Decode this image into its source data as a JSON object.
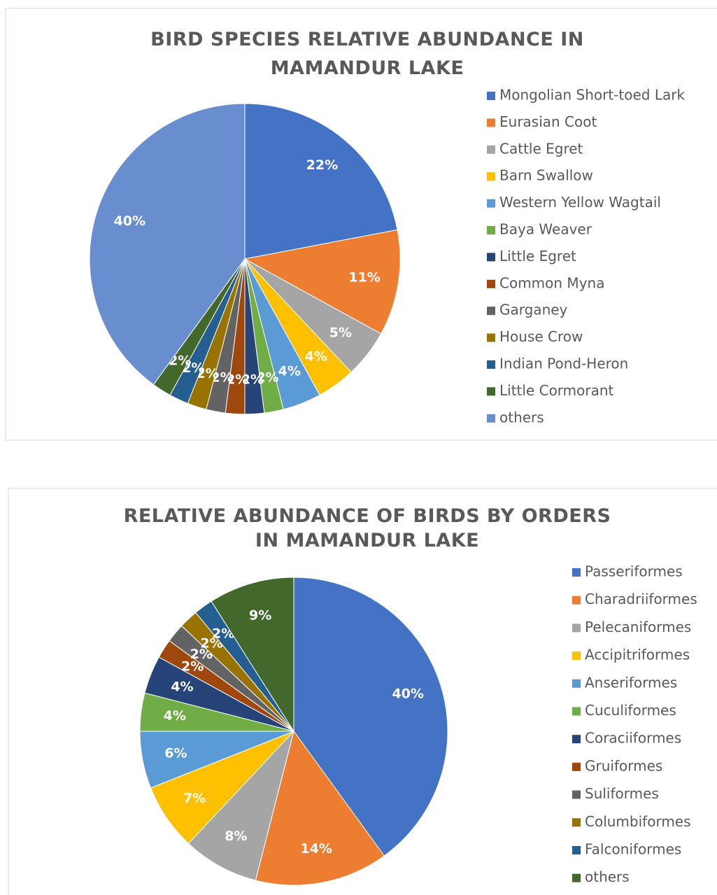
{
  "chart_data": [
    {
      "type": "pie",
      "title": "BIRD SPECIES RELATIVE ABUNDANCE IN MAMANDUR LAKE",
      "categories": [
        "Mongolian Short-toed Lark",
        "Eurasian Coot",
        "Cattle Egret",
        "Barn Swallow",
        "Western Yellow Wagtail",
        "Baya Weaver",
        "Little Egret",
        "Common Myna",
        "Garganey",
        "House Crow",
        "Indian Pond-Heron",
        "Little Cormorant",
        "others"
      ],
      "values": [
        22,
        11,
        5,
        4,
        4,
        2,
        2,
        2,
        2,
        2,
        2,
        2,
        40
      ],
      "value_labels": [
        "22%",
        "11%",
        "5%",
        "4%",
        "4%",
        "2%",
        "2%",
        "2%",
        "2%",
        "2%",
        "2%",
        "2%",
        "40%"
      ],
      "colors": [
        "#4472c4",
        "#ed7d31",
        "#a5a5a5",
        "#ffc000",
        "#5b9bd5",
        "#70ad47",
        "#264478",
        "#9e480e",
        "#636363",
        "#997300",
        "#255e91",
        "#43682b",
        "#698ed0"
      ],
      "legend": "right"
    },
    {
      "type": "pie",
      "title": "RELATIVE ABUNDANCE OF BIRDS BY ORDERS IN MAMANDUR LAKE",
      "categories": [
        "Passeriformes",
        "Charadriiformes",
        "Pelecaniformes",
        "Accipitriformes",
        "Anseriformes",
        "Cuculiformes",
        "Coraciiformes",
        "Gruiformes",
        "Suliformes",
        "Columbiformes",
        "Falconiformes",
        "others"
      ],
      "values": [
        40,
        14,
        8,
        7,
        6,
        4,
        4,
        2,
        2,
        2,
        2,
        9
      ],
      "value_labels": [
        "40%",
        "14%",
        "8%",
        "7%",
        "6%",
        "4%",
        "4%",
        "2%",
        "2%",
        "2%",
        "2%",
        "9%"
      ],
      "colors": [
        "#4472c4",
        "#ed7d31",
        "#a5a5a5",
        "#ffc000",
        "#5b9bd5",
        "#70ad47",
        "#264478",
        "#9e480e",
        "#636363",
        "#997300",
        "#255e91",
        "#43682b"
      ],
      "legend": "right"
    }
  ]
}
